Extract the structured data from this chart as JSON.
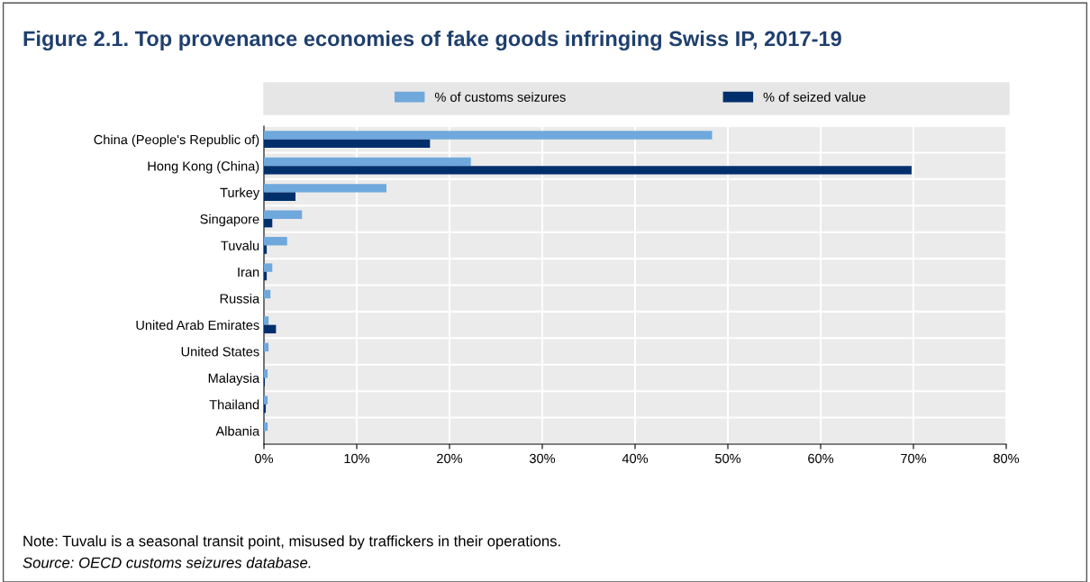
{
  "chart_data": {
    "type": "bar",
    "orientation": "horizontal",
    "title": "Figure 2.1. Top provenance economies of fake goods infringing Swiss IP, 2017-19",
    "categories": [
      "China (People's Republic of)",
      "Hong Kong (China)",
      "Turkey",
      "Singapore",
      "Tuvalu",
      "Iran",
      "Russia",
      "United Arab Emirates",
      "United States",
      "Malaysia",
      "Thailand",
      "Albania"
    ],
    "series": [
      {
        "name": "% of customs seizures",
        "color": "#6fa8dc",
        "values": [
          48.3,
          22.3,
          13.2,
          4.1,
          2.5,
          0.9,
          0.7,
          0.5,
          0.5,
          0.4,
          0.4,
          0.4
        ]
      },
      {
        "name": "% of seized value",
        "color": "#002f6c",
        "values": [
          17.9,
          69.8,
          3.4,
          0.9,
          0.3,
          0.3,
          0,
          1.3,
          0,
          0.1,
          0.2,
          0
        ]
      }
    ],
    "xlim": [
      0,
      80
    ],
    "xticks": [
      {
        "value": 0,
        "label": "0%"
      },
      {
        "value": 10,
        "label": "10%"
      },
      {
        "value": 20,
        "label": "20%"
      },
      {
        "value": 30,
        "label": "30%"
      },
      {
        "value": 40,
        "label": "40%"
      },
      {
        "value": 50,
        "label": "50%"
      },
      {
        "value": 60,
        "label": "60%"
      },
      {
        "value": 70,
        "label": "70%"
      },
      {
        "value": 80,
        "label": "80%"
      }
    ],
    "grid": "x",
    "legend": "top",
    "annotations": [
      "Note: Tuvalu is a seasonal transit point, misused by traffickers in their operations.",
      "Source: OECD customs seizures database."
    ]
  }
}
